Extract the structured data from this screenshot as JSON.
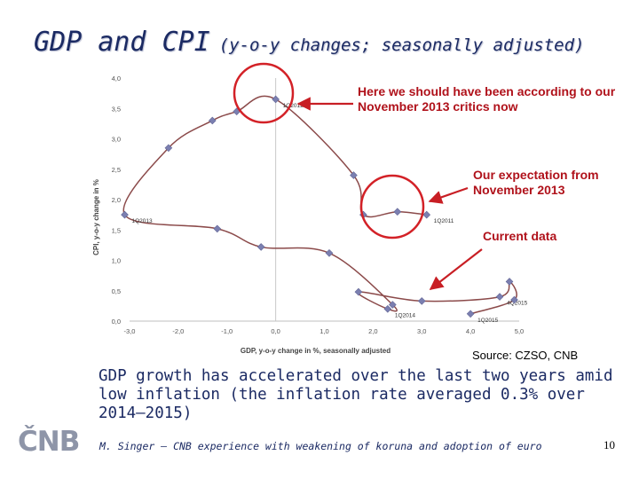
{
  "slide": {
    "title": "GDP and CPI",
    "subtitle": "(y-o-y changes; seasonally adjusted)",
    "source": "Source: CZSO, CNB",
    "summary": "GDP growth has accelerated over the last two years amid low inflation (the inflation rate averaged 0.3% over 2014–2015)",
    "footer": "M. Singer – CNB experience with weakening of koruna and adoption of euro",
    "page_number": "10",
    "logo_text": "ČNB"
  },
  "annotations": [
    {
      "id": "critics",
      "text": "Here we should have been according to our November 2013 critics now"
    },
    {
      "id": "expectation",
      "text": "Our expectation from November 2013"
    },
    {
      "id": "current",
      "text": "Current data"
    }
  ],
  "colors": {
    "line": "#8b4a4a",
    "marker": "#7b7fb0",
    "highlight": "#d32127",
    "arrow": "#c81e24",
    "title": "#1b2a63"
  },
  "chart_data": {
    "type": "scatter",
    "xlabel": "GDP, y-o-y change in %, seasonally adjusted",
    "ylabel": "CPI, y-o-y change in %",
    "xlim": [
      -3.0,
      5.0
    ],
    "ylim": [
      0.0,
      4.0
    ],
    "x_ticks": [
      "-3,0",
      "-2,0",
      "-1,0",
      "0,0",
      "1,0",
      "2,0",
      "3,0",
      "4,0",
      "5,0"
    ],
    "y_ticks": [
      "0,0",
      "0,5",
      "1,0",
      "1,5",
      "2,0",
      "2,5",
      "3,0",
      "3,5",
      "4,0"
    ],
    "series": [
      {
        "connected": true,
        "points": [
          {
            "x": 3.1,
            "y": 1.75,
            "label": "1Q2011"
          },
          {
            "x": 2.5,
            "y": 1.8
          },
          {
            "x": 1.8,
            "y": 1.75
          },
          {
            "x": 1.6,
            "y": 2.4
          },
          {
            "x": 0.0,
            "y": 3.65,
            "label": "1Q2012"
          },
          {
            "x": -0.8,
            "y": 3.45
          },
          {
            "x": -1.3,
            "y": 3.3
          },
          {
            "x": -2.2,
            "y": 2.85
          },
          {
            "x": -3.1,
            "y": 1.75,
            "label": "1Q2013"
          },
          {
            "x": -1.2,
            "y": 1.52
          },
          {
            "x": -0.3,
            "y": 1.22
          },
          {
            "x": 1.1,
            "y": 1.12
          },
          {
            "x": 2.4,
            "y": 0.27
          },
          {
            "x": 2.3,
            "y": 0.2,
            "label": "1Q2014"
          },
          {
            "x": 1.7,
            "y": 0.48
          },
          {
            "x": 3.0,
            "y": 0.33
          },
          {
            "x": 4.6,
            "y": 0.4,
            "label": "4Q2015"
          },
          {
            "x": 4.8,
            "y": 0.65
          },
          {
            "x": 4.9,
            "y": 0.35
          },
          {
            "x": 4.0,
            "y": 0.12,
            "label": "1Q2015"
          }
        ]
      }
    ]
  }
}
